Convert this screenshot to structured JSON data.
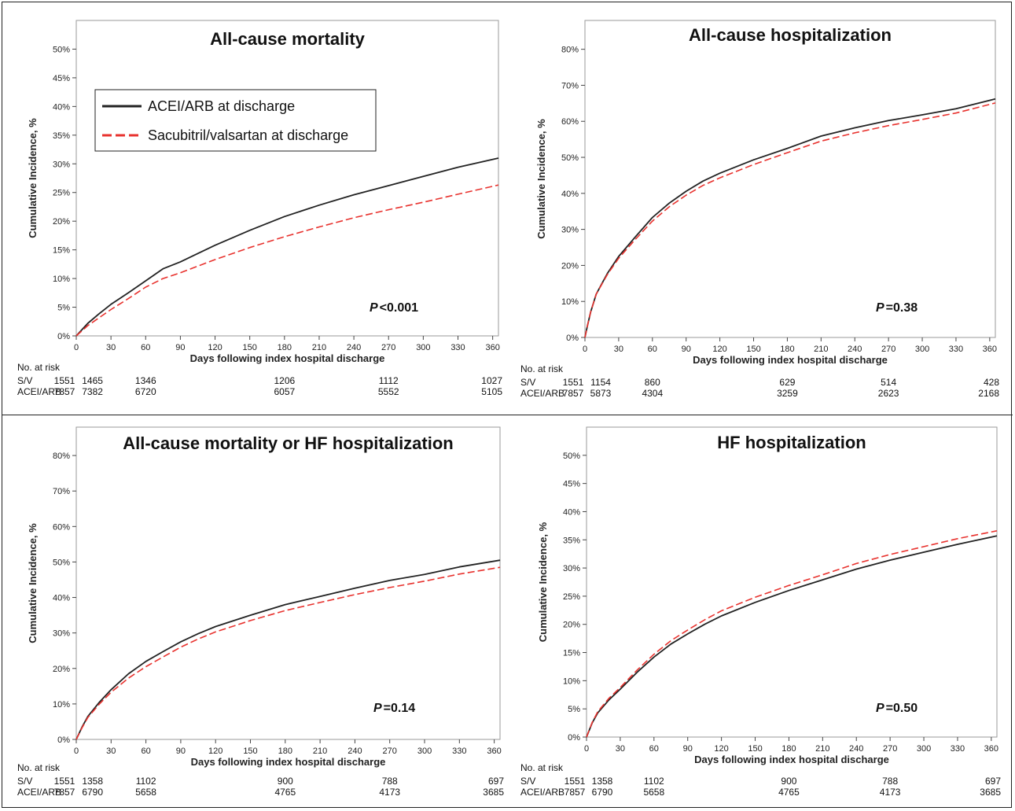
{
  "legend": {
    "acei": "ACEI/ARB at discharge",
    "sv": "Sacubitril/valsartan at discharge"
  },
  "colors": {
    "acei": "#222222",
    "sv": "#e8322e"
  },
  "chart_data": [
    {
      "type": "line",
      "title": "All-cause mortality",
      "xlabel": "Days following index hospital discharge",
      "ylabel": "Cumulative Incidence, %",
      "xlim": [
        0,
        365
      ],
      "ylim": [
        0,
        55
      ],
      "xticks": [
        0,
        30,
        60,
        90,
        120,
        150,
        180,
        210,
        240,
        270,
        300,
        330,
        360
      ],
      "yticks": [
        0,
        5,
        10,
        15,
        20,
        25,
        30,
        35,
        40,
        45,
        50
      ],
      "series": [
        {
          "name": "ACEI/ARB at discharge",
          "x": [
            0,
            10,
            20,
            30,
            45,
            60,
            75,
            90,
            120,
            150,
            180,
            210,
            240,
            270,
            300,
            330,
            365
          ],
          "y": [
            0,
            2.2,
            3.9,
            5.5,
            7.5,
            9.6,
            11.7,
            12.9,
            15.8,
            18.4,
            20.8,
            22.8,
            24.6,
            26.2,
            27.8,
            29.4,
            31.0
          ]
        },
        {
          "name": "Sacubitril/valsartan at discharge",
          "x": [
            0,
            10,
            20,
            30,
            45,
            60,
            75,
            90,
            120,
            150,
            180,
            210,
            240,
            270,
            300,
            330,
            365
          ],
          "y": [
            0,
            1.8,
            3.2,
            4.6,
            6.5,
            8.5,
            10.0,
            11.0,
            13.3,
            15.4,
            17.3,
            19.0,
            20.6,
            22.0,
            23.3,
            24.7,
            26.3
          ]
        }
      ],
      "p_label": "P",
      "p_value": "<0.001",
      "risk": {
        "header": "No. at risk",
        "days": [
          0,
          14,
          60,
          180,
          270,
          365
        ],
        "rows": [
          {
            "label": "S/V",
            "values": [
              "1551",
              "1465",
              "1346",
              "1206",
              "1112",
              "1027"
            ]
          },
          {
            "label": "ACEI/ARB",
            "values": [
              "7857",
              "7382",
              "6720",
              "6057",
              "5552",
              "5105"
            ]
          }
        ]
      }
    },
    {
      "type": "line",
      "title": "All-cause hospitalization",
      "xlabel": "Days following index hospital discharge",
      "ylabel": "Cumulative Incidence, %",
      "xlim": [
        0,
        365
      ],
      "ylim": [
        0,
        88
      ],
      "xticks": [
        0,
        30,
        60,
        90,
        120,
        150,
        180,
        210,
        240,
        270,
        300,
        330,
        360
      ],
      "yticks": [
        0,
        10,
        20,
        30,
        40,
        50,
        60,
        70,
        80
      ],
      "series": [
        {
          "name": "ACEI/ARB at discharge",
          "x": [
            0,
            2,
            5,
            10,
            20,
            30,
            45,
            60,
            75,
            90,
            105,
            120,
            150,
            180,
            210,
            240,
            270,
            300,
            330,
            365
          ],
          "y": [
            0,
            3.0,
            7.0,
            12.0,
            17.8,
            22.5,
            28.0,
            33.3,
            37.3,
            40.6,
            43.4,
            45.6,
            49.3,
            52.5,
            55.9,
            58.2,
            60.2,
            61.8,
            63.5,
            66.2
          ]
        },
        {
          "name": "Sacubitril/valsartan at discharge",
          "x": [
            0,
            2,
            5,
            10,
            20,
            30,
            45,
            60,
            75,
            90,
            105,
            120,
            150,
            180,
            210,
            240,
            270,
            300,
            330,
            365
          ],
          "y": [
            0,
            3.0,
            7.0,
            12.0,
            17.5,
            22.0,
            27.3,
            32.3,
            36.3,
            39.5,
            42.2,
            44.3,
            48.0,
            51.3,
            54.5,
            56.8,
            58.8,
            60.5,
            62.3,
            65.1
          ]
        }
      ],
      "p_label": "P",
      "p_value": "=0.38",
      "risk": {
        "header": "No. at risk",
        "days": [
          0,
          14,
          60,
          180,
          270,
          365
        ],
        "rows": [
          {
            "label": "S/V",
            "values": [
              "1551",
              "1154",
              "860",
              "629",
              "514",
              "428"
            ]
          },
          {
            "label": "ACEI/ARB",
            "values": [
              "7857",
              "5873",
              "4304",
              "3259",
              "2623",
              "2168"
            ]
          }
        ]
      }
    },
    {
      "type": "line",
      "title": "All-cause mortality or HF hospitalization",
      "xlabel": "Days following index hospital discharge",
      "ylabel": "Cumulative Incidence, %",
      "xlim": [
        0,
        365
      ],
      "ylim": [
        0,
        88
      ],
      "xticks": [
        0,
        30,
        60,
        90,
        120,
        150,
        180,
        210,
        240,
        270,
        300,
        330,
        360
      ],
      "yticks": [
        0,
        10,
        20,
        30,
        40,
        50,
        60,
        70,
        80
      ],
      "series": [
        {
          "name": "ACEI/ARB at discharge",
          "x": [
            0,
            5,
            10,
            20,
            30,
            45,
            60,
            75,
            90,
            105,
            120,
            150,
            180,
            210,
            240,
            270,
            300,
            330,
            365
          ],
          "y": [
            0,
            3.5,
            6.5,
            10.5,
            14.0,
            18.5,
            22.0,
            24.8,
            27.5,
            29.8,
            31.8,
            35.0,
            38.0,
            40.3,
            42.6,
            44.8,
            46.5,
            48.6,
            50.5
          ]
        },
        {
          "name": "Sacubitril/valsartan at discharge",
          "x": [
            0,
            5,
            10,
            20,
            30,
            45,
            60,
            75,
            90,
            105,
            120,
            150,
            180,
            210,
            240,
            270,
            300,
            330,
            365
          ],
          "y": [
            0,
            3.3,
            6.2,
            10.0,
            13.3,
            17.3,
            20.5,
            23.3,
            26.0,
            28.3,
            30.3,
            33.5,
            36.3,
            38.6,
            40.8,
            42.8,
            44.6,
            46.6,
            48.5
          ]
        }
      ],
      "p_label": "P",
      "p_value": "=0.14",
      "risk": {
        "header": "No. at risk",
        "days": [
          0,
          14,
          60,
          180,
          270,
          365
        ],
        "rows": [
          {
            "label": "S/V",
            "values": [
              "1551",
              "1358",
              "1102",
              "900",
              "788",
              "697"
            ]
          },
          {
            "label": "ACEI/ARB",
            "values": [
              "7857",
              "6790",
              "5658",
              "4765",
              "4173",
              "3685"
            ]
          }
        ]
      }
    },
    {
      "type": "line",
      "title": "HF hospitalization",
      "xlabel": "Days following index hospital discharge",
      "ylabel": "Cumulative Incidence, %",
      "xlim": [
        0,
        365
      ],
      "ylim": [
        0,
        55
      ],
      "xticks": [
        0,
        30,
        60,
        90,
        120,
        150,
        180,
        210,
        240,
        270,
        300,
        330,
        360
      ],
      "yticks": [
        0,
        5,
        10,
        15,
        20,
        25,
        30,
        35,
        40,
        45,
        50
      ],
      "series": [
        {
          "name": "ACEI/ARB at discharge",
          "x": [
            0,
            5,
            10,
            20,
            30,
            45,
            60,
            75,
            90,
            105,
            120,
            150,
            180,
            210,
            240,
            270,
            300,
            330,
            365
          ],
          "y": [
            0,
            2.5,
            4.3,
            6.6,
            8.5,
            11.5,
            14.2,
            16.5,
            18.3,
            20.0,
            21.5,
            23.9,
            26.0,
            27.9,
            29.8,
            31.4,
            32.8,
            34.2,
            35.7
          ]
        },
        {
          "name": "Sacubitril/valsartan at discharge",
          "x": [
            0,
            5,
            10,
            20,
            30,
            45,
            60,
            75,
            90,
            105,
            120,
            150,
            180,
            210,
            240,
            270,
            300,
            330,
            365
          ],
          "y": [
            0,
            2.6,
            4.5,
            6.9,
            8.8,
            11.9,
            14.7,
            17.1,
            19.0,
            20.8,
            22.4,
            24.8,
            26.9,
            28.8,
            30.8,
            32.4,
            33.8,
            35.2,
            36.6
          ]
        }
      ],
      "p_label": "P",
      "p_value": "=0.50",
      "risk": {
        "header": "No. at risk",
        "days": [
          0,
          14,
          60,
          180,
          270,
          365
        ],
        "rows": [
          {
            "label": "S/V",
            "values": [
              "1551",
              "1358",
              "1102",
              "900",
              "788",
              "697"
            ]
          },
          {
            "label": "ACEI/ARB",
            "values": [
              "7857",
              "6790",
              "5658",
              "4765",
              "4173",
              "3685"
            ]
          }
        ]
      }
    }
  ]
}
